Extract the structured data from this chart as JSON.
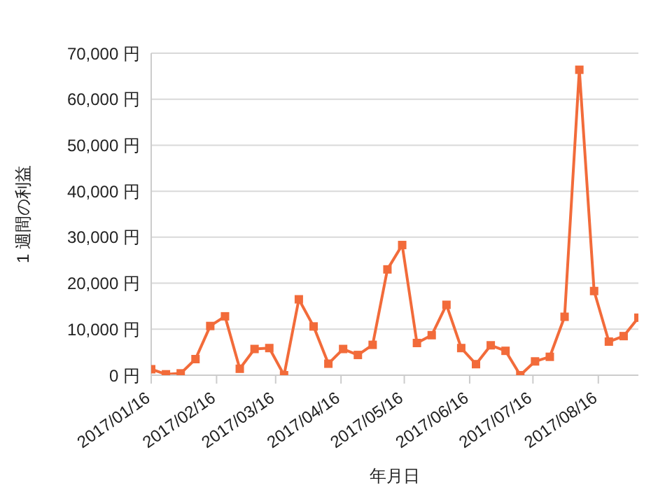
{
  "chart_data": {
    "type": "line",
    "xlabel": "年月日",
    "ylabel": "1 週間の利益",
    "x": [
      "2017-01-16",
      "2017-01-23",
      "2017-01-30",
      "2017-02-06",
      "2017-02-13",
      "2017-02-20",
      "2017-02-27",
      "2017-03-06",
      "2017-03-13",
      "2017-03-20",
      "2017-03-27",
      "2017-04-03",
      "2017-04-10",
      "2017-04-17",
      "2017-04-24",
      "2017-05-01",
      "2017-05-08",
      "2017-05-15",
      "2017-05-22",
      "2017-05-29",
      "2017-06-05",
      "2017-06-12",
      "2017-06-19",
      "2017-06-26",
      "2017-07-03",
      "2017-07-10",
      "2017-07-17",
      "2017-07-24",
      "2017-07-31",
      "2017-08-07",
      "2017-08-14",
      "2017-08-21",
      "2017-08-28",
      "2017-09-04"
    ],
    "series": [
      {
        "color": "#f26b3a",
        "values": [
          1300,
          200,
          400,
          3500,
          10700,
          12800,
          1400,
          5700,
          5900,
          0,
          16500,
          10600,
          2500,
          5700,
          4400,
          6600,
          23000,
          28300,
          7000,
          8700,
          15300,
          5900,
          2400,
          6500,
          5300,
          0,
          3000,
          4000,
          12700,
          66400,
          18300,
          7300,
          8500,
          12500
        ]
      }
    ],
    "xlim": [
      "2017-01-16",
      "2017-09-04"
    ],
    "xticks": [
      {
        "value": "2017-01-16",
        "label": "2017/01/16"
      },
      {
        "value": "2017-02-16",
        "label": "2017/02/16"
      },
      {
        "value": "2017-03-16",
        "label": "2017/03/16"
      },
      {
        "value": "2017-04-16",
        "label": "2017/04/16"
      },
      {
        "value": "2017-05-16",
        "label": "2017/05/16"
      },
      {
        "value": "2017-06-16",
        "label": "2017/06/16"
      },
      {
        "value": "2017-07-16",
        "label": "2017/07/16"
      },
      {
        "value": "2017-08-16",
        "label": "2017/08/16"
      }
    ],
    "ylim": [
      0,
      70000
    ],
    "yticks": [
      {
        "value": 0,
        "label": "0 円"
      },
      {
        "value": 10000,
        "label": "10,000 円"
      },
      {
        "value": 20000,
        "label": "20,000 円"
      },
      {
        "value": 30000,
        "label": "30,000 円"
      },
      {
        "value": 40000,
        "label": "40,000 円"
      },
      {
        "value": 50000,
        "label": "50,000 円"
      },
      {
        "value": 60000,
        "label": "60,000 円"
      },
      {
        "value": 70000,
        "label": "70,000 円"
      }
    ],
    "grid": "y",
    "marker": "square",
    "line_style": "solid",
    "legend": false
  }
}
